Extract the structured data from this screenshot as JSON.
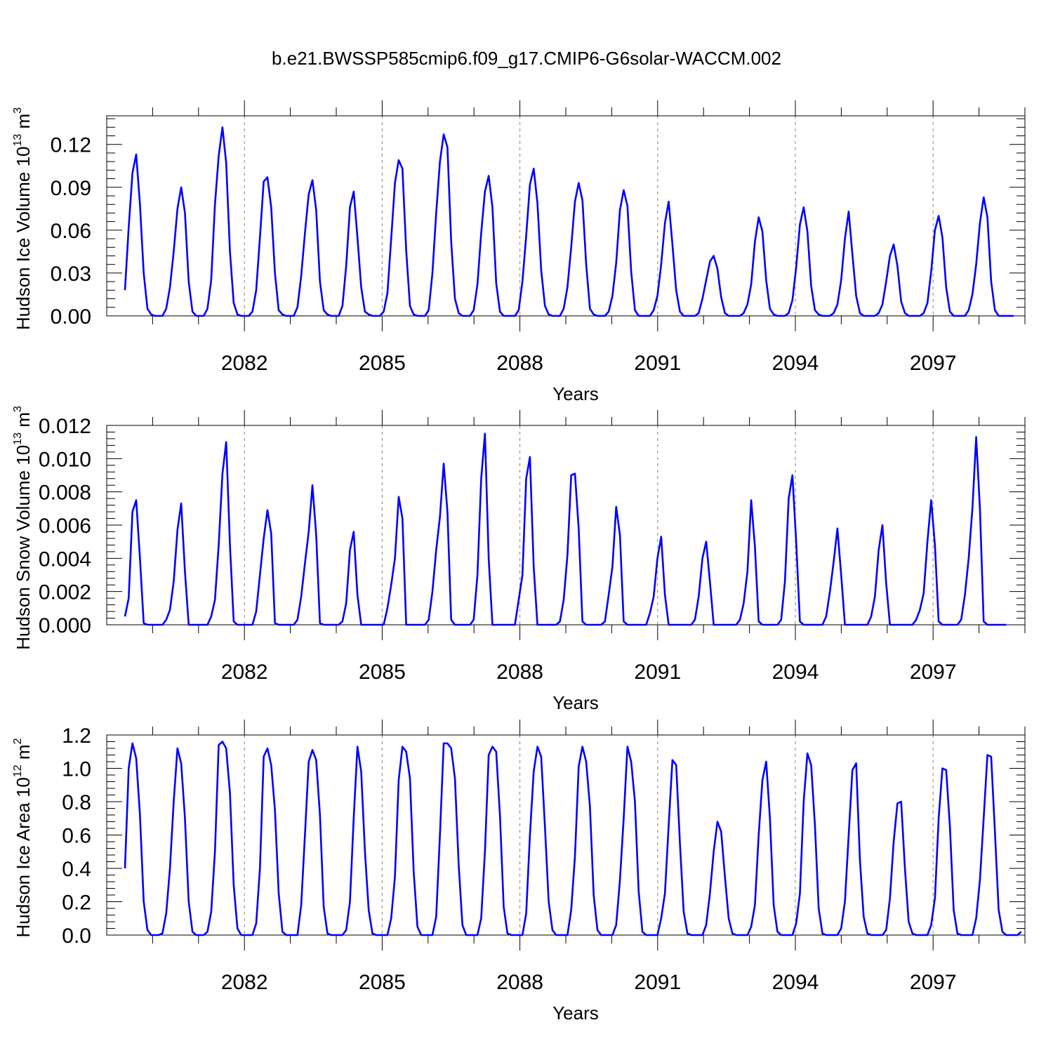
{
  "chart_data": [
    {
      "type": "line",
      "title": "b.e21.BWSSP585cmip6.f09_g17.CMIP6-G6solar-WACCM.002",
      "xlabel": "Years",
      "ylabel": "Hudson Ice Volume 10",
      "ylabel_exp": "13",
      "ylabel_unit": " m",
      "ylabel_unit_exp": "3",
      "xlim": [
        2079.0,
        2099.0
      ],
      "ylim": [
        0.0,
        0.14
      ],
      "yticks": [
        0.0,
        0.03,
        0.06,
        0.09,
        0.12
      ],
      "ytick_labels": [
        "0.00",
        "0.03",
        "0.06",
        "0.09",
        "0.12"
      ],
      "xticks": [
        2082,
        2085,
        2088,
        2091,
        2094,
        2097
      ],
      "xtick_labels": [
        "2082",
        "2085",
        "2088",
        "2091",
        "2094",
        "2097"
      ],
      "series": [
        {
          "name": "Hudson Ice Volume",
          "color": "#0000ff",
          "start_year": 2079.0,
          "step": 0.0833333,
          "values": [
            0.018,
            0.062,
            0.1,
            0.113,
            0.078,
            0.03,
            0.005,
            0.001,
            0.0,
            0.0,
            0.0,
            0.005,
            0.02,
            0.045,
            0.075,
            0.09,
            0.072,
            0.024,
            0.003,
            0.0,
            0.0,
            0.0,
            0.005,
            0.025,
            0.078,
            0.112,
            0.132,
            0.107,
            0.045,
            0.009,
            0.001,
            0.0,
            0.0,
            0.0,
            0.003,
            0.018,
            0.055,
            0.094,
            0.097,
            0.076,
            0.03,
            0.004,
            0.001,
            0.0,
            0.0,
            0.0,
            0.006,
            0.028,
            0.058,
            0.085,
            0.095,
            0.074,
            0.024,
            0.004,
            0.001,
            0.0,
            0.0,
            0.0,
            0.007,
            0.035,
            0.076,
            0.087,
            0.055,
            0.02,
            0.003,
            0.001,
            0.0,
            0.0,
            0.0,
            0.003,
            0.016,
            0.054,
            0.093,
            0.109,
            0.103,
            0.046,
            0.007,
            0.001,
            0.0,
            0.0,
            0.0,
            0.004,
            0.03,
            0.072,
            0.108,
            0.127,
            0.118,
            0.052,
            0.012,
            0.002,
            0.0,
            0.0,
            0.0,
            0.004,
            0.022,
            0.058,
            0.087,
            0.098,
            0.076,
            0.023,
            0.003,
            0.0,
            0.0,
            0.0,
            0.0,
            0.004,
            0.024,
            0.056,
            0.092,
            0.103,
            0.079,
            0.032,
            0.007,
            0.001,
            0.0,
            0.0,
            0.0,
            0.005,
            0.02,
            0.048,
            0.08,
            0.093,
            0.081,
            0.036,
            0.005,
            0.001,
            0.0,
            0.0,
            0.0,
            0.003,
            0.014,
            0.037,
            0.074,
            0.088,
            0.077,
            0.031,
            0.004,
            0.0,
            0.0,
            0.0,
            0.0,
            0.004,
            0.014,
            0.036,
            0.065,
            0.08,
            0.05,
            0.018,
            0.003,
            0.0,
            0.0,
            0.0,
            0.0,
            0.002,
            0.012,
            0.025,
            0.038,
            0.042,
            0.033,
            0.013,
            0.002,
            0.0,
            0.0,
            0.0,
            0.0,
            0.002,
            0.008,
            0.022,
            0.052,
            0.069,
            0.059,
            0.025,
            0.005,
            0.001,
            0.0,
            0.0,
            0.0,
            0.002,
            0.011,
            0.034,
            0.064,
            0.076,
            0.059,
            0.021,
            0.004,
            0.001,
            0.0,
            0.0,
            0.0,
            0.002,
            0.008,
            0.025,
            0.054,
            0.073,
            0.043,
            0.014,
            0.002,
            0.0,
            0.0,
            0.0,
            0.0,
            0.002,
            0.008,
            0.024,
            0.042,
            0.05,
            0.035,
            0.01,
            0.002,
            0.0,
            0.0,
            0.0,
            0.0,
            0.002,
            0.009,
            0.031,
            0.06,
            0.07,
            0.055,
            0.02,
            0.003,
            0.0,
            0.0,
            0.0,
            0.0,
            0.004,
            0.015,
            0.036,
            0.065,
            0.083,
            0.069,
            0.024,
            0.004,
            0.0,
            0.0,
            0.0,
            0.0,
            0.0
          ]
        }
      ]
    },
    {
      "type": "line",
      "title": "",
      "xlabel": "Years",
      "ylabel": "Hudson Snow Volume 10",
      "ylabel_exp": "13",
      "ylabel_unit": " m",
      "ylabel_unit_exp": "3",
      "xlim": [
        2079.0,
        2099.0
      ],
      "ylim": [
        0.0,
        0.012
      ],
      "yticks": [
        0.0,
        0.002,
        0.004,
        0.006,
        0.008,
        0.01,
        0.012
      ],
      "ytick_labels": [
        "0.000",
        "0.002",
        "0.004",
        "0.006",
        "0.008",
        "0.010",
        "0.012"
      ],
      "xticks": [
        2082,
        2085,
        2088,
        2091,
        2094,
        2097
      ],
      "xtick_labels": [
        "2082",
        "2085",
        "2088",
        "2091",
        "2094",
        "2097"
      ],
      "series": [
        {
          "name": "Hudson Snow Volume",
          "color": "#0000ff",
          "start_year": 2079.0,
          "step": 0.0833333,
          "values": [
            0.0005,
            0.0016,
            0.0068,
            0.0075,
            0.004,
            0.0001,
            0.0,
            0.0,
            0.0,
            0.0,
            0.0,
            0.0003,
            0.0009,
            0.0026,
            0.0057,
            0.0073,
            0.0032,
            0.0,
            0.0,
            0.0,
            0.0,
            0.0,
            0.0,
            0.0005,
            0.0015,
            0.0048,
            0.0091,
            0.011,
            0.0048,
            0.0002,
            0.0,
            0.0,
            0.0,
            0.0,
            0.0,
            0.0008,
            0.003,
            0.0052,
            0.0069,
            0.0055,
            0.0001,
            0.0,
            0.0,
            0.0,
            0.0,
            0.0,
            0.0003,
            0.0017,
            0.0037,
            0.0056,
            0.0084,
            0.0054,
            0.0001,
            0.0,
            0.0,
            0.0,
            0.0,
            0.0,
            0.0002,
            0.0013,
            0.0045,
            0.0056,
            0.0018,
            0.0,
            0.0,
            0.0,
            0.0,
            0.0,
            0.0,
            0.0,
            0.001,
            0.0024,
            0.004,
            0.0077,
            0.0064,
            0.0,
            0.0,
            0.0,
            0.0,
            0.0,
            0.0,
            0.0003,
            0.002,
            0.0045,
            0.0065,
            0.0097,
            0.0068,
            0.0003,
            0.0,
            0.0,
            0.0,
            0.0,
            0.0,
            0.0003,
            0.003,
            0.0088,
            0.0115,
            0.004,
            0.0,
            0.0,
            0.0,
            0.0,
            0.0,
            0.0,
            0.0,
            0.0015,
            0.003,
            0.0088,
            0.0101,
            0.0035,
            0.0,
            0.0,
            0.0,
            0.0,
            0.0,
            0.0,
            0.0002,
            0.0015,
            0.0042,
            0.009,
            0.0091,
            0.0058,
            0.0002,
            0.0,
            0.0,
            0.0,
            0.0,
            0.0,
            0.0002,
            0.0018,
            0.0035,
            0.0071,
            0.0054,
            0.0002,
            0.0,
            0.0,
            0.0,
            0.0,
            0.0,
            0.0,
            0.0007,
            0.0017,
            0.004,
            0.0053,
            0.0018,
            0.0,
            0.0,
            0.0,
            0.0,
            0.0,
            0.0,
            0.0,
            0.0003,
            0.0017,
            0.004,
            0.005,
            0.0026,
            0.0,
            0.0,
            0.0,
            0.0,
            0.0,
            0.0,
            0.0,
            0.0003,
            0.0013,
            0.0032,
            0.0075,
            0.0047,
            0.0002,
            0.0,
            0.0,
            0.0,
            0.0,
            0.0,
            0.0003,
            0.0026,
            0.0076,
            0.009,
            0.005,
            0.0002,
            0.0,
            0.0,
            0.0,
            0.0,
            0.0,
            0.0,
            0.0005,
            0.002,
            0.0038,
            0.0058,
            0.003,
            0.0,
            0.0,
            0.0,
            0.0,
            0.0,
            0.0,
            0.0,
            0.0005,
            0.0017,
            0.0045,
            0.006,
            0.0025,
            0.0,
            0.0,
            0.0,
            0.0,
            0.0,
            0.0,
            0.0,
            0.0003,
            0.0009,
            0.0019,
            0.005,
            0.0075,
            0.0048,
            0.0002,
            0.0,
            0.0,
            0.0,
            0.0,
            0.0,
            0.0003,
            0.0018,
            0.004,
            0.007,
            0.0113,
            0.007,
            0.0002,
            0.0,
            0.0,
            0.0,
            0.0,
            0.0,
            0.0
          ]
        }
      ]
    },
    {
      "type": "line",
      "title": "",
      "xlabel": "Years",
      "ylabel": "Hudson Ice Area 10",
      "ylabel_exp": "12",
      "ylabel_unit": " m",
      "ylabel_unit_exp": "2",
      "xlim": [
        2079.0,
        2099.0
      ],
      "ylim": [
        0.0,
        1.2
      ],
      "yticks": [
        0.0,
        0.2,
        0.4,
        0.6,
        0.8,
        1.0,
        1.2
      ],
      "ytick_labels": [
        "0.0",
        "0.2",
        "0.4",
        "0.6",
        "0.8",
        "1.0",
        "1.2"
      ],
      "xticks": [
        2082,
        2085,
        2088,
        2091,
        2094,
        2097
      ],
      "xtick_labels": [
        "2082",
        "2085",
        "2088",
        "2091",
        "2094",
        "2097"
      ],
      "series": [
        {
          "name": "Hudson Ice Area",
          "color": "#0000ff",
          "start_year": 2079.0,
          "step": 0.0833333,
          "values": [
            0.4,
            1.0,
            1.15,
            1.06,
            0.72,
            0.2,
            0.03,
            0.0,
            0.0,
            0.0,
            0.01,
            0.13,
            0.4,
            0.8,
            1.12,
            1.03,
            0.7,
            0.2,
            0.02,
            0.0,
            0.0,
            0.0,
            0.02,
            0.14,
            0.5,
            1.14,
            1.16,
            1.12,
            0.85,
            0.3,
            0.04,
            0.0,
            0.0,
            0.0,
            0.0,
            0.07,
            0.4,
            1.07,
            1.12,
            1.02,
            0.75,
            0.25,
            0.02,
            0.0,
            0.0,
            0.0,
            0.0,
            0.18,
            0.6,
            1.04,
            1.11,
            1.05,
            0.72,
            0.17,
            0.01,
            0.0,
            0.0,
            0.0,
            0.0,
            0.03,
            0.2,
            0.7,
            1.13,
            0.98,
            0.5,
            0.15,
            0.01,
            0.0,
            0.0,
            0.0,
            0.0,
            0.1,
            0.35,
            0.93,
            1.13,
            1.1,
            0.94,
            0.38,
            0.05,
            0.0,
            0.0,
            0.0,
            0.0,
            0.11,
            0.6,
            1.15,
            1.15,
            1.12,
            0.94,
            0.42,
            0.06,
            0.0,
            0.0,
            0.0,
            0.0,
            0.1,
            0.5,
            1.08,
            1.13,
            1.1,
            0.72,
            0.17,
            0.01,
            0.0,
            0.0,
            0.0,
            0.0,
            0.13,
            0.6,
            0.98,
            1.13,
            1.07,
            0.65,
            0.2,
            0.03,
            0.0,
            0.0,
            0.0,
            0.0,
            0.15,
            0.47,
            1.01,
            1.13,
            1.04,
            0.77,
            0.24,
            0.03,
            0.0,
            0.0,
            0.0,
            0.0,
            0.06,
            0.33,
            0.7,
            1.13,
            1.04,
            0.8,
            0.26,
            0.02,
            0.0,
            0.0,
            0.0,
            0.0,
            0.1,
            0.25,
            0.66,
            1.05,
            1.02,
            0.55,
            0.14,
            0.01,
            0.0,
            0.0,
            0.0,
            0.0,
            0.06,
            0.25,
            0.5,
            0.68,
            0.62,
            0.35,
            0.1,
            0.01,
            0.0,
            0.0,
            0.0,
            0.0,
            0.05,
            0.18,
            0.6,
            0.93,
            1.04,
            0.7,
            0.18,
            0.02,
            0.0,
            0.0,
            0.0,
            0.0,
            0.07,
            0.25,
            0.8,
            1.09,
            1.02,
            0.66,
            0.16,
            0.01,
            0.0,
            0.0,
            0.0,
            0.0,
            0.04,
            0.2,
            0.6,
            0.99,
            1.03,
            0.45,
            0.11,
            0.01,
            0.0,
            0.0,
            0.0,
            0.0,
            0.03,
            0.22,
            0.56,
            0.79,
            0.8,
            0.4,
            0.08,
            0.01,
            0.0,
            0.0,
            0.0,
            0.0,
            0.06,
            0.22,
            0.7,
            1.0,
            0.99,
            0.65,
            0.15,
            0.01,
            0.0,
            0.0,
            0.0,
            0.0,
            0.1,
            0.33,
            0.7,
            1.08,
            1.07,
            0.62,
            0.15,
            0.02,
            0.0,
            0.0,
            0.0,
            0.0,
            0.02
          ]
        }
      ]
    }
  ]
}
